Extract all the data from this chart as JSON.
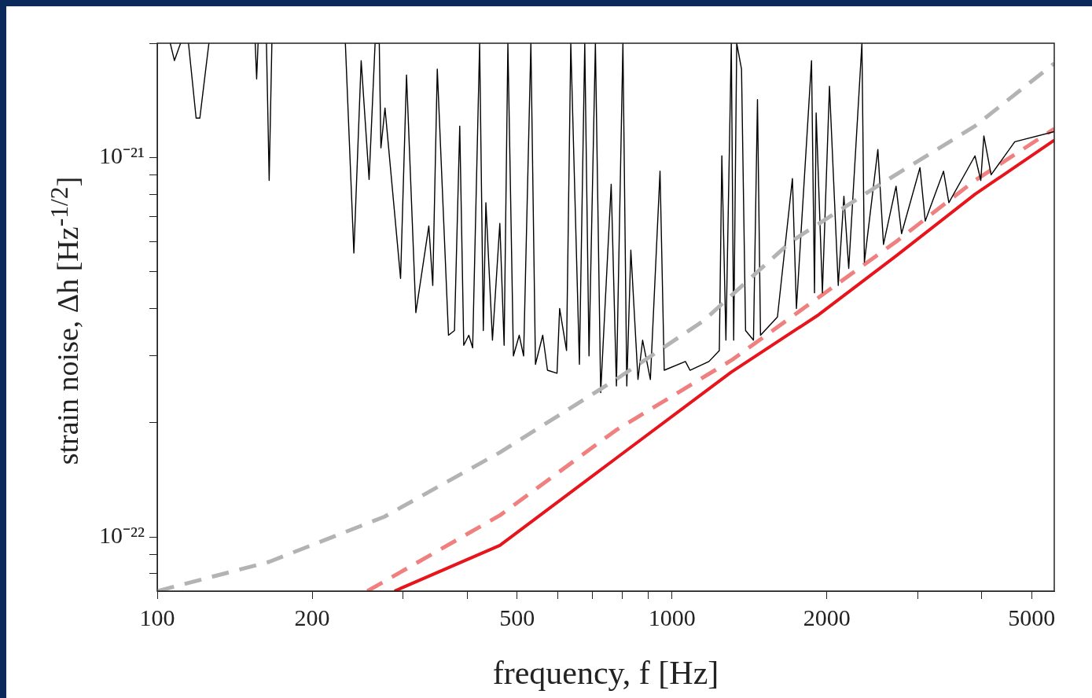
{
  "chart_data": {
    "type": "line",
    "xlabel": "frequency, f [Hz]",
    "ylabel": "strain noise, Δh  [Hz$^{-1/2}$]",
    "log": "xy",
    "grid": false,
    "legend": false,
    "marker": "none",
    "xlim": [
      100,
      5530
    ],
    "ylim": [
      7.2e-23,
      2e-21
    ],
    "xticks": [
      100,
      200,
      {
        "value": 300,
        "label": null
      },
      {
        "value": 400,
        "label": null
      },
      500,
      {
        "value": 600,
        "label": null
      },
      {
        "value": 700,
        "label": null
      },
      {
        "value": 800,
        "label": null
      },
      {
        "value": 900,
        "label": null
      },
      1000,
      2000,
      {
        "value": 3000,
        "label": null
      },
      {
        "value": 4000,
        "label": null
      },
      5000
    ],
    "yticks": [
      {
        "value": 8e-23,
        "label": null
      },
      {
        "value": 9e-23,
        "label": null
      },
      {
        "value": 1e-22,
        "label": "10⁻²²"
      },
      {
        "value": 2e-22,
        "label": null
      },
      {
        "value": 3e-22,
        "label": null
      },
      {
        "value": 4e-22,
        "label": null
      },
      {
        "value": 5e-22,
        "label": null
      },
      {
        "value": 6e-22,
        "label": null
      },
      {
        "value": 7e-22,
        "label": null
      },
      {
        "value": 8e-22,
        "label": null
      },
      {
        "value": 9e-22,
        "label": null
      },
      {
        "value": 1e-21,
        "label": "10⁻²¹"
      },
      {
        "value": 2e-21,
        "label": null
      }
    ],
    "series": [
      {
        "color": "#b3b3b3",
        "line_style": "dashed",
        "x": [
          100,
          165,
          276,
          463,
          778,
          1148,
          1702,
          2540,
          3879,
          5530
        ],
        "values": [
          7.2e-23,
          8.6e-23,
          1.13e-22,
          1.67e-22,
          2.6e-22,
          3.7e-22,
          6e-22,
          8.5e-22,
          1.21e-21,
          1.77e-21
        ]
      },
      {
        "color": "#000000",
        "line_style": "solid",
        "x": [
          106,
          108,
          111,
          113,
          115,
          119,
          121,
          126,
          140,
          155,
          156,
          157,
          160,
          163,
          165,
          167,
          200,
          232,
          241,
          249,
          258,
          265,
          270,
          272,
          277,
          297,
          305,
          318,
          337,
          343,
          350,
          368,
          378,
          387,
          394,
          403,
          410,
          423,
          430,
          435,
          448,
          463,
          472,
          480,
          492,
          505,
          515,
          532,
          543,
          561,
          573,
          598,
          605,
          624,
          636,
          661,
          677,
          690,
          710,
          727,
          762,
          780,
          803,
          817,
          832,
          859,
          877,
          908,
          948,
          966,
          1062,
          1084,
          1180,
          1236,
          1250,
          1273,
          1304,
          1318,
          1336,
          1365,
          1390,
          1440,
          1466,
          1486,
          1603,
          1714,
          1745,
          1867,
          1892,
          1906,
          1960,
          2023,
          2104,
          2158,
          2205,
          2339,
          2365,
          2512,
          2576,
          2725,
          2793,
          3033,
          3105,
          3370,
          3451,
          3879,
          3981,
          4036,
          4169,
          4634,
          5530
        ],
        "values": [
          2e-21,
          1.8e-21,
          2e-21,
          null,
          2e-21,
          1.27e-21,
          1.27e-21,
          2e-21,
          null,
          2e-21,
          1.61e-21,
          2e-21,
          null,
          2e-21,
          8.7e-22,
          2e-21,
          null,
          2e-21,
          5.6e-22,
          1.8e-21,
          8.75e-22,
          2e-21,
          2e-21,
          1.06e-21,
          1.35e-21,
          4.8e-22,
          1.65e-21,
          3.9e-22,
          6.6e-22,
          4.6e-22,
          1.71e-21,
          3.4e-22,
          3.5e-22,
          1.21e-21,
          3.2e-22,
          3.4e-22,
          3.15e-22,
          2e-21,
          3.5e-22,
          7.6e-22,
          3.3e-22,
          6.7e-22,
          3.2e-22,
          2e-21,
          3e-22,
          3.4e-22,
          3e-22,
          2e-21,
          2.85e-22,
          3.4e-22,
          2.75e-22,
          2.7e-22,
          4e-22,
          3.1e-22,
          2e-21,
          2.85e-22,
          2e-21,
          3e-22,
          2e-21,
          2.4e-22,
          8.5e-22,
          2.5e-22,
          2e-21,
          2.5e-22,
          5.7e-22,
          2.6e-22,
          3.3e-22,
          2.6e-22,
          9.2e-22,
          2.75e-22,
          2.9e-22,
          2.75e-22,
          2.9e-22,
          3.1e-22,
          1.01e-21,
          3.3e-22,
          2e-21,
          3.3e-22,
          2e-21,
          1.71e-21,
          3.5e-22,
          3.3e-22,
          1.42e-21,
          3.4e-22,
          3.8e-22,
          8.8e-22,
          4e-22,
          1.8e-21,
          4.4e-22,
          1.31e-21,
          4.4e-22,
          1.54e-21,
          4.6e-22,
          7.9e-22,
          5.1e-22,
          2e-21,
          5.3e-22,
          1.05e-21,
          5.9e-22,
          8.4e-22,
          6.3e-22,
          9.4e-22,
          6.8e-22,
          9.2e-22,
          7.6e-22,
          1.01e-21,
          8.7e-22,
          1.14e-21,
          9e-22,
          1.1e-21,
          1.17e-21
        ]
      },
      {
        "color": "#f08080",
        "line_style": "dashed",
        "x": [
          256,
          463,
          778,
          1304,
          2725,
          3879,
          5530
        ],
        "values": [
          7.2e-23,
          1.14e-22,
          1.91e-22,
          2.92e-22,
          6e-22,
          8.7e-22,
          1.19e-21
        ]
      },
      {
        "color": "#e8141b",
        "line_style": "solid",
        "x": [
          289,
          463,
          778,
          1304,
          1927,
          2725,
          3879,
          5530
        ],
        "values": [
          7.2e-23,
          9.5e-23,
          1.61e-22,
          2.72e-22,
          3.85e-22,
          5.5e-22,
          8e-22,
          1.11e-21
        ]
      }
    ]
  }
}
